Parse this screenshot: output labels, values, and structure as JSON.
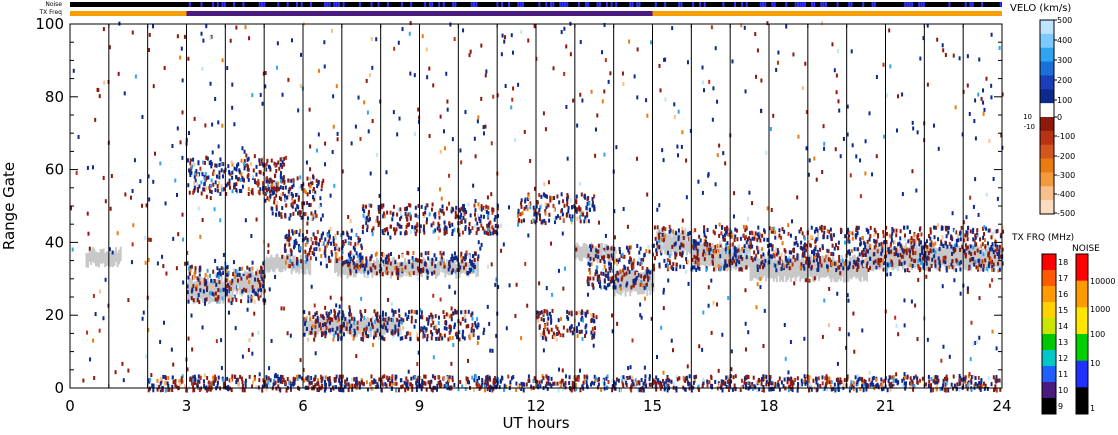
{
  "labels": {
    "noise_bar": "Noise",
    "txfreq_bar": "TX Freq",
    "velo_title": "VELO (km/s)",
    "txfrq_title": "TX FRQ (MHz)",
    "noise_title": "NOISE",
    "ylabel": "Range Gate",
    "xlabel": "UT hours",
    "velo_small_pos": "10",
    "velo_small_neg": "-10"
  },
  "colors": {
    "background": "#ffffff",
    "ground_scatter": "#c8c8c8",
    "txfreq_orange": "#f5a000",
    "txfreq_purple": "#4b1a7e",
    "noise_black": "#000000",
    "noise_blue": "#3030ff"
  },
  "chart_data": {
    "type": "heatmap",
    "xlabel": "UT hours",
    "ylabel": "Range Gate",
    "xlim": [
      0,
      24
    ],
    "ylim": [
      0,
      100
    ],
    "xticks": [
      0,
      3,
      6,
      9,
      12,
      15,
      18,
      21,
      24
    ],
    "xtick_labels": [
      "0",
      "3",
      "6",
      "9",
      "12",
      "15",
      "18",
      "21",
      "24"
    ],
    "yticks": [
      0,
      20,
      40,
      60,
      80,
      100
    ],
    "ytick_labels": [
      "0",
      "20",
      "40",
      "60",
      "80",
      "100"
    ],
    "hour_lines": [
      1,
      2,
      3,
      4,
      5,
      6,
      7,
      8,
      9,
      10,
      11,
      12,
      13,
      14,
      15,
      16,
      17,
      18,
      19,
      20,
      21,
      22,
      23
    ],
    "tx_freq_segments": [
      {
        "start": 0,
        "end": 3,
        "color": "#f5a000"
      },
      {
        "start": 3,
        "end": 15,
        "color": "#4b1a7e"
      },
      {
        "start": 15,
        "end": 24,
        "color": "#f5a000"
      }
    ],
    "velocity_colorbar": {
      "title": "VELO (km/s)",
      "range": [
        -500,
        500
      ],
      "tick_labels": [
        "500",
        "400",
        "300",
        "200",
        "100",
        "0",
        "-100",
        "-200",
        "-300",
        "-400",
        "-500"
      ],
      "colors": [
        "#bfe4ff",
        "#7ccbff",
        "#2fa4f0",
        "#1a6fd8",
        "#1a3fb8",
        "#0c2a8c",
        "#ffffff",
        "#8c1a0c",
        "#b83214",
        "#d2561e",
        "#ea7b10",
        "#f59a3c",
        "#f8c08a",
        "#fbdcc0"
      ]
    },
    "txfrq_colorbar": {
      "title": "TX FRQ (MHz)",
      "tick_labels": [
        "18",
        "17",
        "16",
        "15",
        "14",
        "13",
        "12",
        "11",
        "10",
        "9"
      ],
      "colors": [
        "#ff0000",
        "#ff5a00",
        "#ff9a00",
        "#ffd200",
        "#c8e600",
        "#00c800",
        "#00c8c8",
        "#2060ff",
        "#4b1a7e",
        "#000000"
      ]
    },
    "noise_colorbar": {
      "title": "NOISE",
      "tick_labels": [
        "10000",
        "1000",
        "100",
        "10",
        "1"
      ],
      "colors": [
        "#ff0000",
        "#ff9a00",
        "#ffe600",
        "#00d000",
        "#2030ff",
        "#000000"
      ]
    },
    "ground_scatter_bands": [
      {
        "start": 0.4,
        "end": 1.3,
        "center": 36,
        "half": 2
      },
      {
        "start": 3.0,
        "end": 4.2,
        "center": 27,
        "half": 3
      },
      {
        "start": 4.2,
        "end": 5.0,
        "center": 29,
        "half": 3
      },
      {
        "start": 5.0,
        "end": 6.2,
        "center": 34,
        "half": 2
      },
      {
        "start": 6.0,
        "end": 8.5,
        "center": 17,
        "half": 2
      },
      {
        "start": 6.8,
        "end": 10.5,
        "center": 33,
        "half": 2
      },
      {
        "start": 13.0,
        "end": 14.0,
        "center": 37,
        "half": 2
      },
      {
        "start": 14.0,
        "end": 15.0,
        "center": 29,
        "half": 3
      },
      {
        "start": 15.1,
        "end": 16.0,
        "center": 40,
        "half": 3
      },
      {
        "start": 16.0,
        "end": 17.5,
        "center": 36,
        "half": 3
      },
      {
        "start": 17.5,
        "end": 20.5,
        "center": 33,
        "half": 3
      },
      {
        "start": 20.5,
        "end": 24.0,
        "center": 36,
        "half": 3
      }
    ],
    "echo_bands": [
      {
        "start": 3.0,
        "end": 5.5,
        "center": 58,
        "half": 5
      },
      {
        "start": 5.0,
        "end": 6.5,
        "center": 52,
        "half": 6
      },
      {
        "start": 3.0,
        "end": 5.0,
        "center": 28,
        "half": 5
      },
      {
        "start": 5.5,
        "end": 7.5,
        "center": 38,
        "half": 5
      },
      {
        "start": 7.0,
        "end": 10.5,
        "center": 34,
        "half": 3
      },
      {
        "start": 6.0,
        "end": 10.5,
        "center": 17,
        "half": 4
      },
      {
        "start": 7.5,
        "end": 11.0,
        "center": 46,
        "half": 4
      },
      {
        "start": 11.5,
        "end": 13.5,
        "center": 49,
        "half": 4
      },
      {
        "start": 12.0,
        "end": 13.5,
        "center": 17,
        "half": 4
      },
      {
        "start": 13.3,
        "end": 15.0,
        "center": 33,
        "half": 6
      },
      {
        "start": 15.0,
        "end": 24.0,
        "center": 38,
        "half": 6
      },
      {
        "start": 2.0,
        "end": 24.0,
        "center": 1,
        "half": 2
      }
    ],
    "noise_blue_intervals": [
      [
        3.0,
        24.0
      ]
    ]
  }
}
